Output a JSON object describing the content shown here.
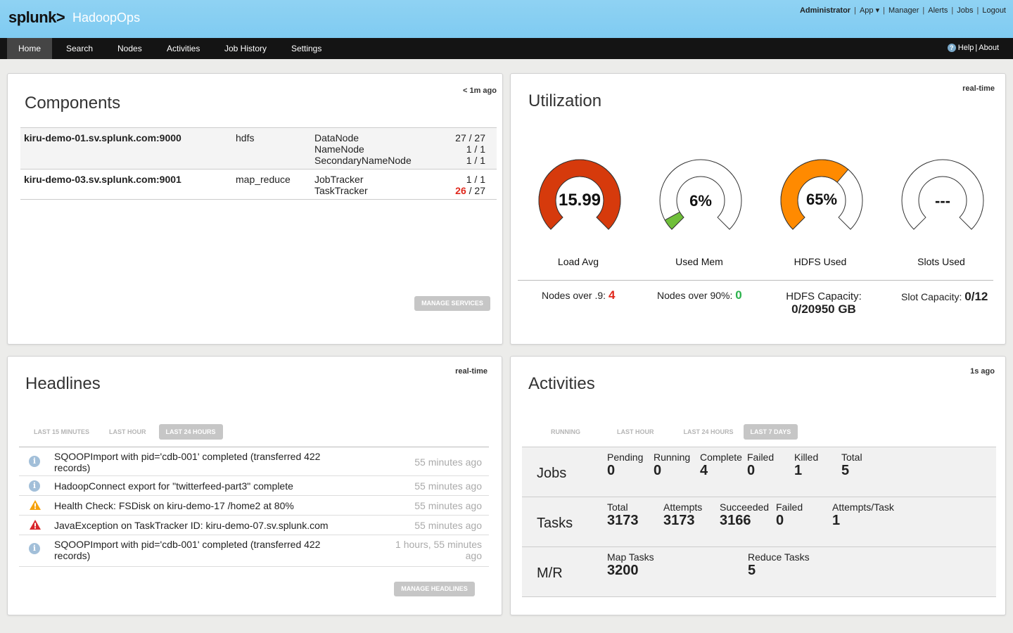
{
  "header": {
    "logo": "splunk>",
    "app_name": "HadoopOps",
    "user_menu": [
      "Administrator",
      "App ▾",
      "Manager",
      "Alerts",
      "Jobs",
      "Logout"
    ]
  },
  "nav": {
    "items": [
      "Home",
      "Search",
      "Nodes",
      "Activities",
      "Job History",
      "Settings"
    ],
    "active": "Home",
    "help": "Help",
    "about": "About"
  },
  "components": {
    "title": "Components",
    "updated": "< 1m ago",
    "rows": [
      {
        "host": "kiru-demo-01.sv.splunk.com:9000",
        "service": "hdfs",
        "roles": [
          "DataNode",
          "NameNode",
          "SecondaryNameNode"
        ],
        "counts": [
          [
            "27",
            "27"
          ],
          [
            "1",
            "1"
          ],
          [
            "1",
            "1"
          ]
        ]
      },
      {
        "host": "kiru-demo-03.sv.splunk.com:9001",
        "service": "map_reduce",
        "roles": [
          "JobTracker",
          "TaskTracker"
        ],
        "counts": [
          [
            "1",
            "1"
          ],
          [
            "26",
            "27"
          ]
        ]
      }
    ],
    "manage_button": "MANAGE SERVICES"
  },
  "utilization": {
    "title": "Utilization",
    "updated": "real-time",
    "gauges": [
      {
        "label": "Load Avg",
        "value": "15.99",
        "fill": 1.0,
        "color": "#d63a0c"
      },
      {
        "label": "Used Mem",
        "value": "6%",
        "fill": 0.06,
        "color": "#6fbf3a"
      },
      {
        "label": "HDFS Used",
        "value": "65%",
        "fill": 0.65,
        "color": "#ff8a00"
      },
      {
        "label": "Slots Used",
        "value": "---",
        "fill": 0,
        "color": "#cccccc"
      }
    ],
    "summary": {
      "nodes_load_label": "Nodes over .9:",
      "nodes_load_value": "4",
      "nodes_mem_label": "Nodes over 90%:",
      "nodes_mem_value": "0",
      "hdfs_capacity_label": "HDFS Capacity:",
      "hdfs_capacity_value": "0/20950 GB",
      "slot_capacity_label": "Slot Capacity:",
      "slot_capacity_value": "0/12"
    }
  },
  "headlines": {
    "title": "Headlines",
    "updated": "real-time",
    "tabs": [
      "LAST 15 MINUTES",
      "LAST HOUR",
      "LAST 24 HOURS"
    ],
    "active_tab": "LAST 24 HOURS",
    "items": [
      {
        "type": "info",
        "text": "SQOOPImport with pid='cdb-001' completed (transferred 422 records)",
        "time": "55 minutes ago"
      },
      {
        "type": "info",
        "text": "HadoopConnect export for \"twitterfeed-part3\" complete",
        "time": "55 minutes ago"
      },
      {
        "type": "warning",
        "text": "Health Check: FSDisk on kiru-demo-17 /home2 at 80%",
        "time": "55 minutes ago"
      },
      {
        "type": "error",
        "text": "JavaException on TaskTracker ID: kiru-demo-07.sv.splunk.com",
        "time": "55 minutes ago"
      },
      {
        "type": "info",
        "text": "SQOOPImport with pid='cdb-001' completed (transferred 422 records)",
        "time": "1 hours, 55 minutes ago"
      }
    ],
    "manage_button": "MANAGE HEADLINES"
  },
  "activities": {
    "title": "Activities",
    "updated": "1s ago",
    "tabs": [
      "RUNNING",
      "LAST HOUR",
      "LAST 24 HOURS",
      "LAST 7 DAYS"
    ],
    "active_tab": "LAST 7 DAYS",
    "jobs": {
      "label": "Jobs",
      "cols": [
        [
          "Pending",
          "0"
        ],
        [
          "Running",
          "0"
        ],
        [
          "Complete",
          "4"
        ],
        [
          "Failed",
          "0"
        ],
        [
          "Killed",
          "1"
        ],
        [
          "Total",
          "5"
        ]
      ]
    },
    "tasks": {
      "label": "Tasks",
      "cols": [
        [
          "Total",
          "3173"
        ],
        [
          "Attempts",
          "3173"
        ],
        [
          "Succeeded",
          "3166"
        ],
        [
          "Failed",
          "0"
        ],
        [
          "Attempts/Task",
          "1"
        ]
      ]
    },
    "mr": {
      "label": "M/R",
      "cols": [
        [
          "Map Tasks",
          "3200"
        ],
        [
          "Reduce Tasks",
          "5"
        ]
      ]
    }
  }
}
